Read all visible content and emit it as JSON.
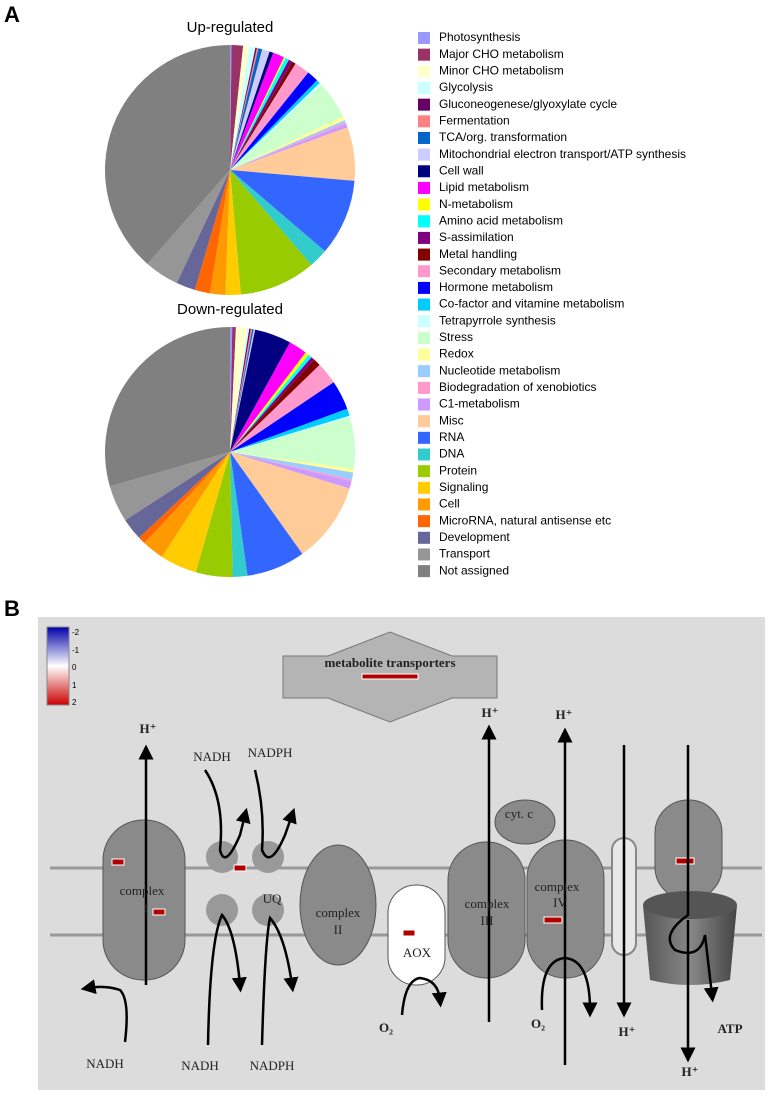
{
  "chart_data": {
    "type": "pie",
    "categories": [
      "Photosynthesis",
      "Major CHO metabolism",
      "Minor CHO metabolism",
      "Glycolysis",
      "Gluconeogenese/glyoxylate cycle",
      "Fermentation",
      "TCA/org. transformation",
      "Mitochondrial electron transport/ATP synthesis",
      "Cell wall",
      "Lipid metabolism",
      "N-metabolism",
      "Amino acid metabolism",
      "S-assimilation",
      "Metal handling",
      "Secondary metabolism",
      "Hormone metabolism",
      "Co-factor and vitamine metabolism",
      "Tetrapyrrole synthesis",
      "Stress",
      "Redox",
      "Nucleotide metabolism",
      "Biodegradation of xenobiotics",
      "C1-metabolism",
      "Misc",
      "RNA",
      "DNA",
      "Protein",
      "Signaling",
      "Cell",
      "MicroRNA, natural antisense etc",
      "Development",
      "Transport",
      "Not assigned"
    ],
    "colors": [
      "#9999ff",
      "#993366",
      "#ffffcc",
      "#ccffff",
      "#660066",
      "#ff8080",
      "#0066cc",
      "#ccccff",
      "#000080",
      "#ff00ff",
      "#ffff00",
      "#00ffff",
      "#800080",
      "#800000",
      "#ff99cc",
      "#0000ff",
      "#00ccff",
      "#ccffff",
      "#ccffcc",
      "#ffff99",
      "#99ccff",
      "#ff99cc",
      "#cc99ff",
      "#ffcc99",
      "#3366ff",
      "#33cccc",
      "#99cc00",
      "#ffcc00",
      "#ff9900",
      "#ff6600",
      "#666699",
      "#969696",
      "#808080"
    ],
    "series": [
      {
        "name": "Up-regulated",
        "values": [
          0.2,
          1.5,
          0.8,
          0.8,
          0.2,
          0.2,
          0.5,
          1,
          0.5,
          1.5,
          0.2,
          0.5,
          0.5,
          0.5,
          2,
          1.5,
          0.5,
          0.3,
          5,
          0.5,
          0.3,
          0.2,
          0.5,
          7,
          10,
          2.5,
          10,
          2,
          2,
          2,
          2.5,
          4.5,
          39
        ]
      },
      {
        "name": "Down-regulated",
        "values": [
          0.3,
          0.5,
          1.5,
          0.3,
          0.2,
          0.2,
          0.2,
          0.2,
          5,
          2.5,
          0.5,
          0.5,
          0.5,
          1,
          3,
          4,
          1,
          0.2,
          7,
          0.5,
          1,
          0.2,
          1,
          11,
          8,
          2,
          5,
          5,
          3,
          1,
          3,
          5,
          31
        ]
      }
    ]
  },
  "panel_labels": [
    "A",
    "B"
  ],
  "diagram": {
    "scale": [
      "-2",
      "-1",
      "0",
      "1",
      "2"
    ],
    "transport": "metabolite transporters",
    "labels": [
      "H⁺",
      "NADH",
      "NADPH",
      "H⁺",
      "H⁺",
      "cyt. c",
      "complex",
      "I",
      "UQ",
      "complex",
      "II",
      "AOX",
      "complex",
      "III",
      "complex",
      "IV",
      "NADH",
      "NADH",
      "NADPH",
      "O₂",
      "O₂",
      "H⁺",
      "ATP",
      "H⁺"
    ]
  }
}
